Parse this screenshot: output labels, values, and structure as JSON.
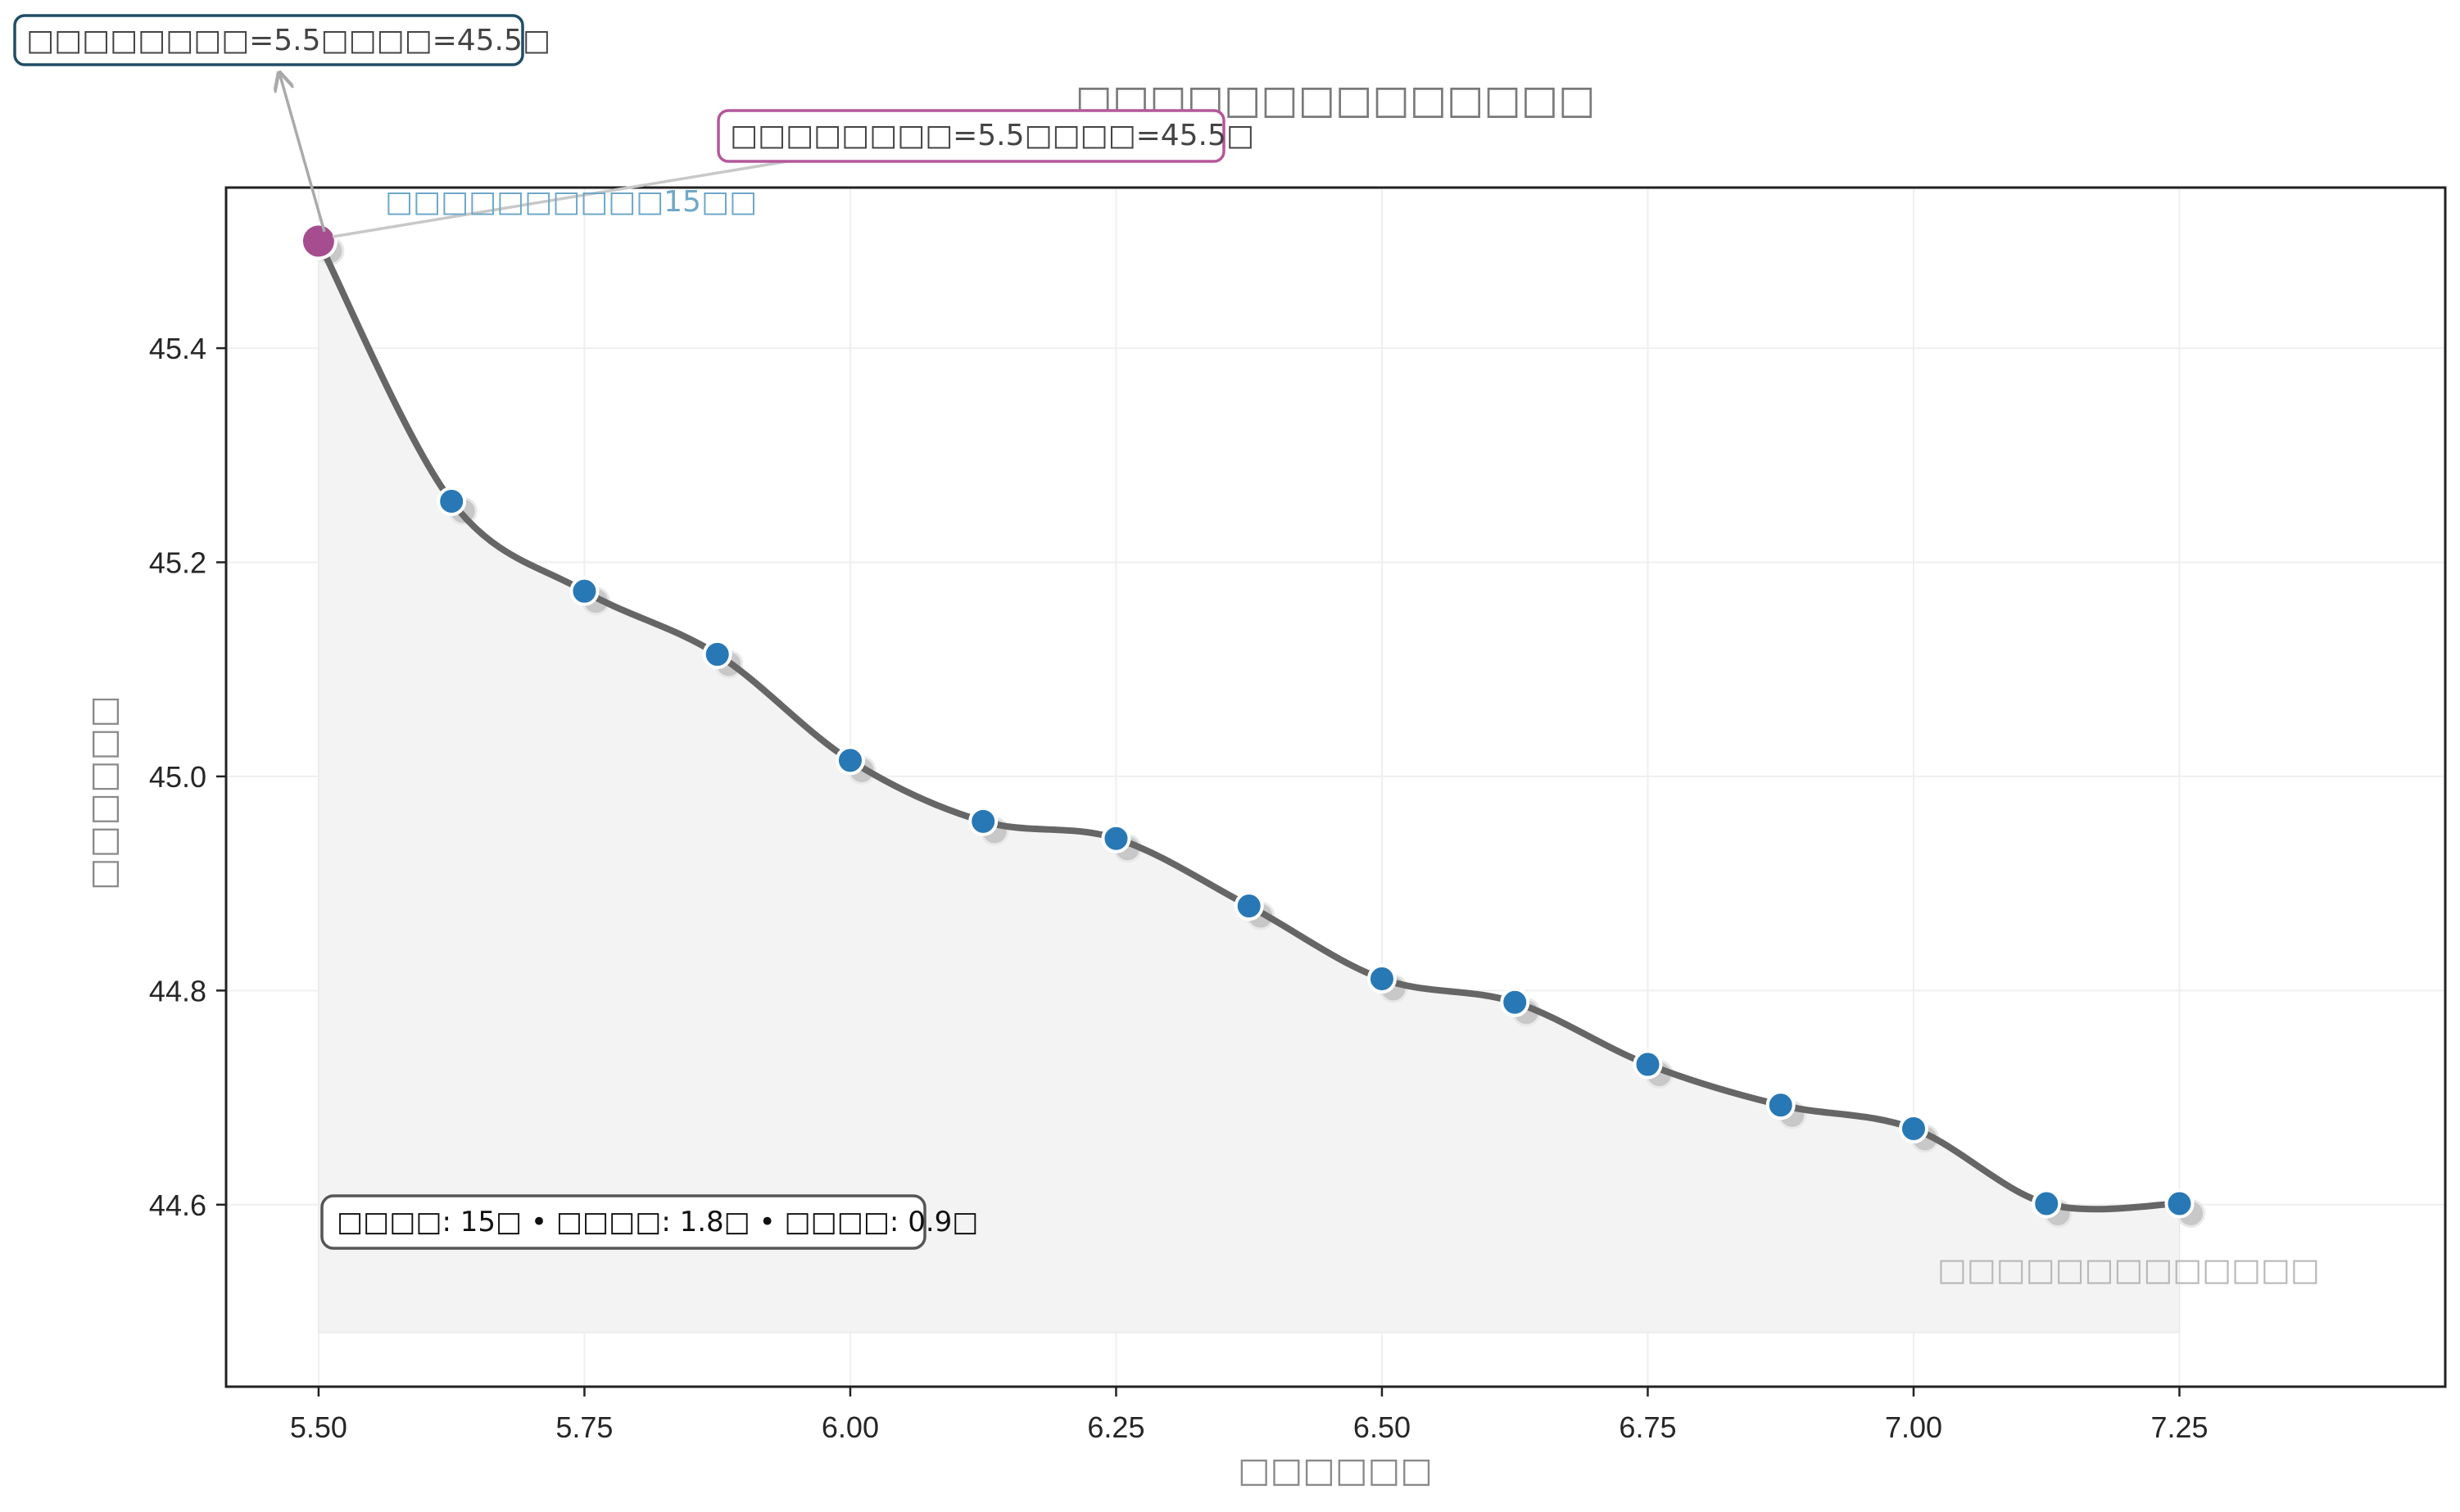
{
  "chart_data": {
    "type": "line",
    "title": "□□□□□□□□□□□□□□",
    "xlabel": "□□□□□□",
    "ylabel": "□□□□□□",
    "xlim": [
      5.413,
      7.5
    ],
    "ylim": [
      44.43,
      45.55
    ],
    "grid": true,
    "x_ticks": [
      5.5,
      5.75,
      6.0,
      6.25,
      6.5,
      6.75,
      7.0,
      7.25
    ],
    "x_tick_labels": [
      "5.50",
      "5.75",
      "6.00",
      "6.25",
      "6.50",
      "6.75",
      "7.00",
      "7.25"
    ],
    "y_ticks": [
      44.6,
      44.8,
      45.0,
      45.2,
      45.4
    ],
    "y_tick_labels": [
      "44.6",
      "44.8",
      "45.0",
      "45.2",
      "45.4"
    ],
    "series": [
      {
        "x": [
          5.5,
          5.625,
          5.75,
          5.875,
          6.0,
          6.125,
          6.25,
          6.375,
          6.5,
          6.625,
          6.75,
          6.875,
          7.0,
          7.125,
          7.25
        ],
        "y": [
          45.5,
          45.257,
          45.173,
          45.114,
          45.015,
          44.958,
          44.942,
          44.879,
          44.811,
          44.789,
          44.731,
          44.693,
          44.671,
          44.601,
          44.601
        ],
        "color": "#2878b5",
        "line_color": "#666666",
        "shadow_color": "#c8c8c8",
        "fill_color": "#f0f0f0"
      }
    ],
    "highlight": {
      "x": 5.5,
      "y": 45.5,
      "color": "#a64d8f"
    },
    "annotations": [
      {
        "text": "□□□□□□□□=5.5□□□□=45.5□",
        "border_color": "#1f4e66"
      },
      {
        "text": "□□□□□□□□=5.5□□□□=45.5□",
        "border_color": "#b5579a"
      },
      {
        "text": "□□□□□□□□□□15□□",
        "color": "#6fa8c8"
      },
      {
        "text": "□□□□□□□□□□□□□",
        "color": "#b8b8b8"
      },
      {
        "text": "□□□□: 15□ • □□□□: 1.8□ • □□□□: 0.9□",
        "border_color": "#555555"
      }
    ]
  }
}
